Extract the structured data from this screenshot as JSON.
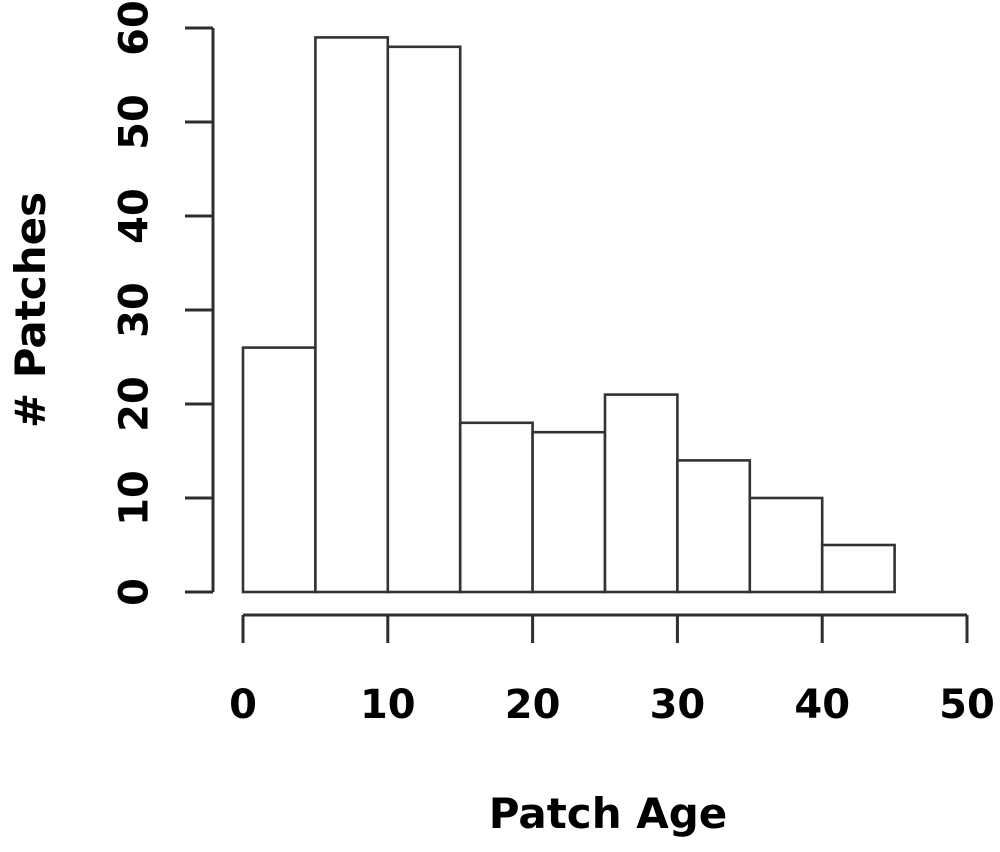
{
  "chart_data": {
    "type": "bar",
    "subtype": "histogram",
    "title": "",
    "xlabel": "Patch Age",
    "ylabel": "# Patches",
    "bin_width": 5,
    "bin_start": 0,
    "bin_edges": [
      0,
      5,
      10,
      15,
      20,
      25,
      30,
      35,
      40,
      45
    ],
    "values": [
      26,
      59,
      58,
      18,
      17,
      21,
      14,
      10,
      5
    ],
    "x_ticks": [
      0,
      10,
      20,
      30,
      40,
      50
    ],
    "y_ticks": [
      0,
      10,
      20,
      30,
      40,
      50,
      60
    ],
    "xlim": [
      0,
      50
    ],
    "ylim": [
      0,
      60
    ],
    "grid": false,
    "legend": false,
    "colors": {
      "background": "#ffffff",
      "bar_fill": "#ffffff",
      "bar_stroke": "#333333",
      "axis_stroke": "#2e2e2e",
      "text": "#000000"
    }
  }
}
